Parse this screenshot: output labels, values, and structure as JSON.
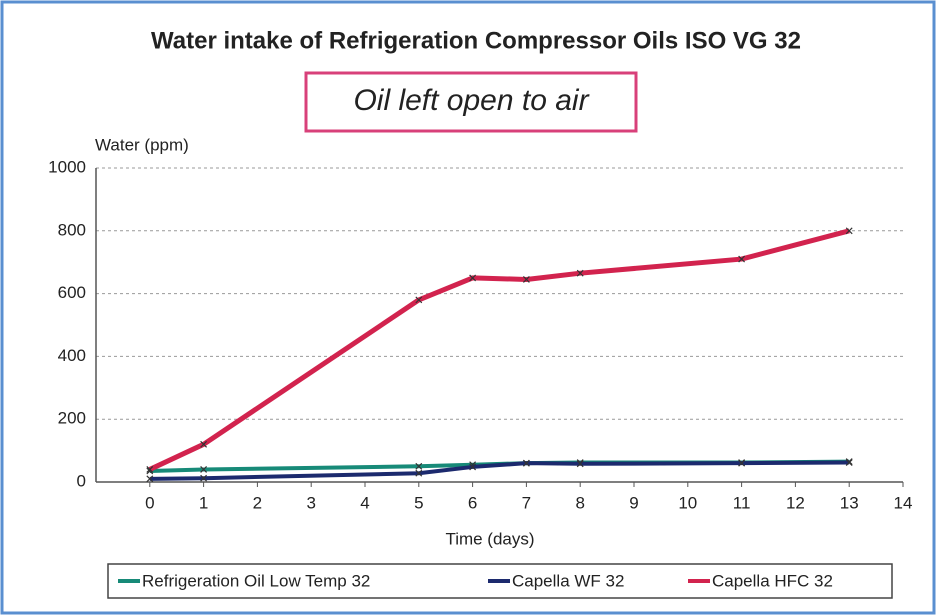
{
  "chart_data": {
    "type": "line",
    "title": "Water intake of Refrigeration Compressor Oils ISO VG 32",
    "subtitle": "Oil left open to air",
    "y_label": "Water (ppm)",
    "x_label": "Time (days)",
    "x": [
      0,
      1,
      5,
      6,
      7,
      8,
      11,
      13
    ],
    "series": [
      {
        "name": "Refrigeration Oil Low Temp 32",
        "color": "#178a78",
        "values": [
          35,
          40,
          50,
          55,
          60,
          62,
          62,
          65
        ]
      },
      {
        "name": "Capella WF 32",
        "color": "#1c2a6e",
        "values": [
          10,
          12,
          28,
          48,
          60,
          58,
          60,
          62
        ]
      },
      {
        "name": "Capella HFC 32",
        "color": "#d2234e",
        "values": [
          40,
          120,
          580,
          650,
          645,
          665,
          710,
          800
        ]
      }
    ],
    "xlim": [
      -1,
      14
    ],
    "xticks": [
      0,
      1,
      2,
      3,
      4,
      5,
      6,
      7,
      8,
      9,
      10,
      11,
      12,
      13,
      14
    ],
    "ylim": [
      0,
      1000
    ],
    "yticks": [
      0,
      200,
      400,
      600,
      800,
      1000
    ],
    "grid": true,
    "legend": "bottom"
  }
}
